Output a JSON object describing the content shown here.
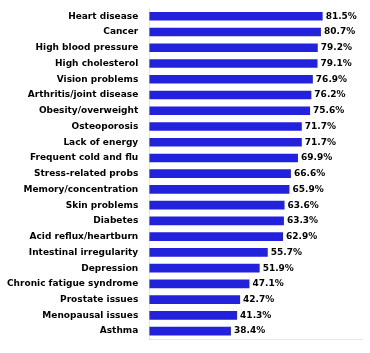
{
  "chart_data": {
    "type": "bar",
    "orientation": "horizontal",
    "categories": [
      "Asthma",
      "Menopausal issues",
      "Prostate issues",
      "Chronic fatigue syndrome",
      "Depression",
      "Intestinal irregularity",
      "Acid reflux/heartburn",
      "Diabetes",
      "Skin problems",
      "Memory/concentration",
      "Stress-related probs",
      "Frequent cold and flu",
      "Lack of energy",
      "Osteoporosis",
      "Obesity/overweight",
      "Arthritis/joint disease",
      "Vision problems",
      "High cholesterol",
      "High blood pressure",
      "Cancer",
      "Heart disease"
    ],
    "values": [
      38.4,
      41.3,
      42.7,
      47.1,
      51.9,
      55.7,
      62.9,
      63.3,
      63.6,
      65.9,
      66.6,
      69.9,
      71.7,
      71.7,
      75.6,
      76.2,
      76.9,
      79.1,
      79.2,
      80.7,
      81.5
    ],
    "value_labels": [
      "38.4%",
      "41.3%",
      "42.7%",
      "47.1%",
      "51.9%",
      "55.7%",
      "62.9%",
      "63.3%",
      "63.6%",
      "65.9%",
      "66.6%",
      "69.9%",
      "71.7%",
      "71.7%",
      "75.6%",
      "76.2%",
      "76.9%",
      "79.1%",
      "79.2%",
      "80.7%",
      "81.5%"
    ],
    "color": "#2222dd",
    "xlim": [
      0,
      100
    ],
    "grid": false,
    "data_labels": true,
    "tick_labels": "y"
  }
}
